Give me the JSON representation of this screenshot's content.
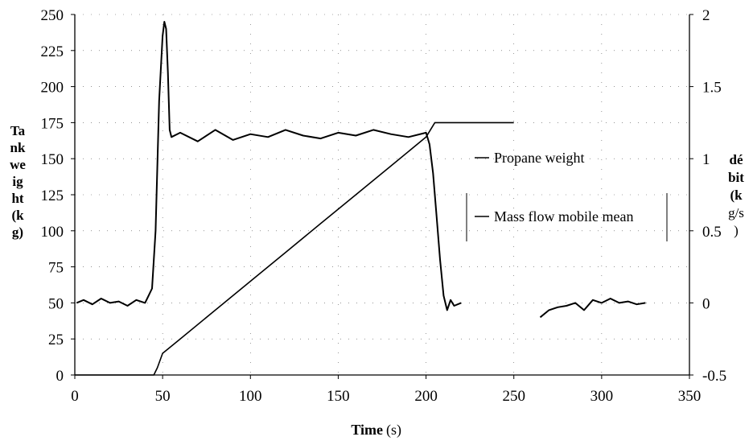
{
  "chart_data": {
    "type": "line",
    "xlabel": "Time",
    "xlabel_unit": "(s)",
    "ylabel_left_lines": [
      "Ta",
      "nk",
      "we",
      "ig",
      "ht",
      "(k",
      "g)"
    ],
    "ylabel_right_lines": [
      "dé",
      "bit",
      "(k",
      "g/s",
      ")"
    ],
    "xlim": [
      0,
      350
    ],
    "ylim_left": [
      0,
      250
    ],
    "ylim_right": [
      -0.5,
      2
    ],
    "x_ticks": [
      "0",
      "50",
      "100",
      "150",
      "200",
      "250",
      "300",
      "350"
    ],
    "y_ticks_left": [
      "0",
      "25",
      "50",
      "75",
      "100",
      "125",
      "150",
      "175",
      "200",
      "225",
      "250"
    ],
    "y_ticks_right": [
      "-0.5",
      "0",
      "0.5",
      "1",
      "1.5",
      "2"
    ],
    "legend_position": "right-center",
    "series": [
      {
        "name": "Propane weight",
        "axis": "left",
        "x": [
          0,
          45,
          47,
          50,
          60,
          80,
          100,
          120,
          140,
          160,
          180,
          200,
          205,
          220,
          240,
          250
        ],
        "y": [
          0,
          0,
          5,
          15,
          25,
          45,
          65,
          85,
          105,
          125,
          145,
          165,
          175,
          175,
          175,
          175
        ]
      },
      {
        "name": "Mass flow mobile mean",
        "axis": "left",
        "segments": [
          {
            "x": [
              1,
              5,
              10,
              15,
              20,
              25,
              30,
              35,
              40,
              42,
              44,
              46,
              48,
              50,
              51,
              52,
              53,
              54,
              55,
              60,
              70,
              80,
              90,
              100,
              110,
              120,
              130,
              140,
              150,
              160,
              170,
              180,
              190,
              200,
              202,
              204,
              206,
              208,
              210,
              212,
              214,
              216,
              220
            ],
            "y": [
              50,
              52,
              49,
              53,
              50,
              51,
              48,
              52,
              50,
              55,
              60,
              100,
              190,
              235,
              245,
              240,
              210,
              170,
              165,
              168,
              162,
              170,
              163,
              167,
              165,
              170,
              166,
              164,
              168,
              166,
              170,
              167,
              165,
              168,
              160,
              140,
              110,
              80,
              55,
              45,
              52,
              48,
              50
            ]
          },
          {
            "x": [
              265,
              270,
              275,
              280,
              285,
              290,
              295,
              300,
              305,
              310,
              315,
              320,
              325
            ],
            "y": [
              40,
              45,
              47,
              48,
              50,
              45,
              52,
              50,
              53,
              50,
              51,
              49,
              50
            ]
          }
        ]
      }
    ]
  }
}
